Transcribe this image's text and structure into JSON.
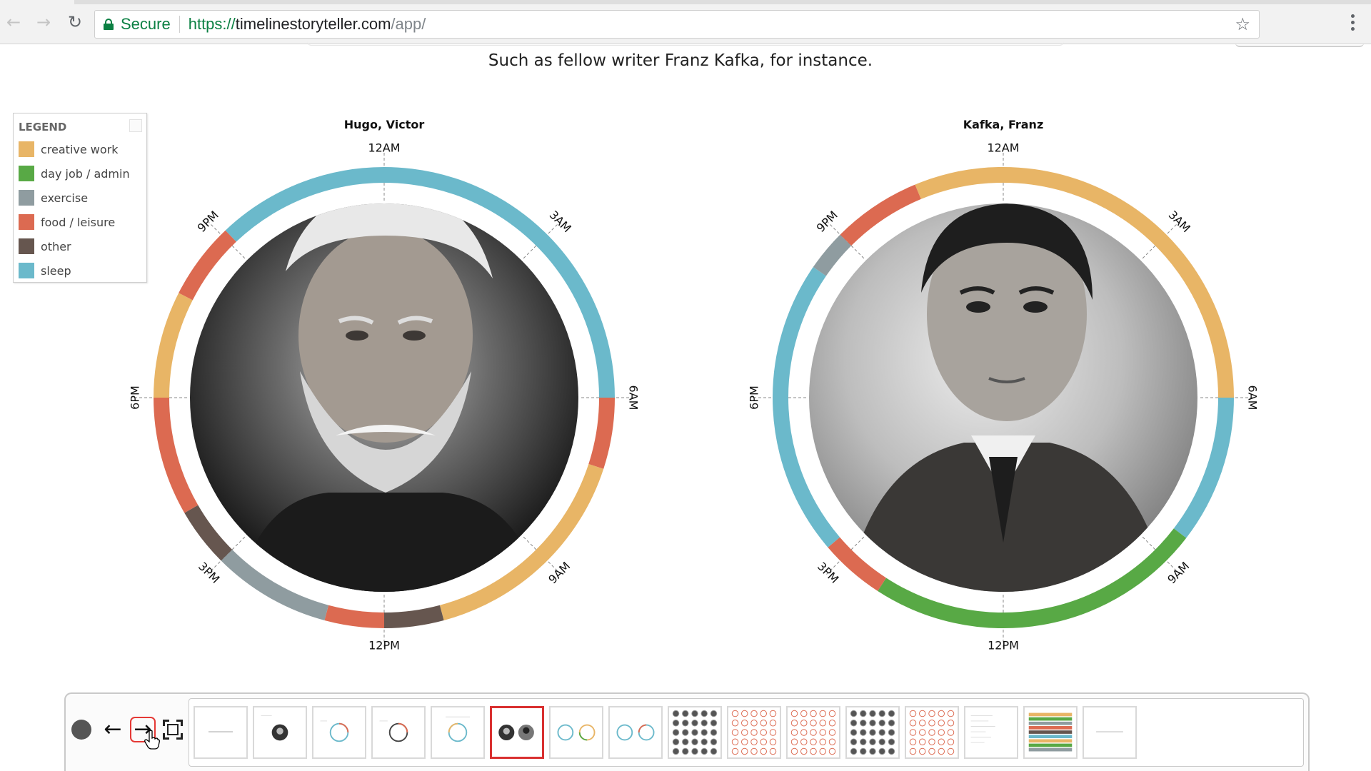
{
  "browser": {
    "security_label": "Secure",
    "url_scheme": "https://",
    "url_host": "timelinestoryteller.com",
    "url_path": "/app/",
    "icons": [
      "back-arrow-icon",
      "forward-arrow-icon",
      "reload-icon",
      "lock-icon",
      "star-icon",
      "menu-dots-icon"
    ]
  },
  "page": {
    "caption": "Such as fellow writer Franz Kafka, for instance."
  },
  "legend": {
    "title": "LEGEND",
    "items": [
      {
        "label": "creative work",
        "color": "#e8b566"
      },
      {
        "label": "day job / admin",
        "color": "#58a945"
      },
      {
        "label": "exercise",
        "color": "#8f9ca0"
      },
      {
        "label": "food / leisure",
        "color": "#dc6a51"
      },
      {
        "label": "other",
        "color": "#66564f"
      },
      {
        "label": "sleep",
        "color": "#6bb9cb"
      }
    ]
  },
  "clocks": [
    {
      "title": "Hugo, Victor",
      "hour_labels": {
        "top": "12AM",
        "h3": "3AM",
        "right": "6AM",
        "h9": "9AM",
        "bottom": "12PM",
        "h15": "3PM",
        "left": "6PM",
        "h21": "9PM"
      },
      "segments": [
        {
          "category": "sleep",
          "start_hour": 21.1,
          "end_hour": 6.0
        },
        {
          "category": "food / leisure",
          "start_hour": 6.0,
          "end_hour": 7.2
        },
        {
          "category": "creative work",
          "start_hour": 7.2,
          "end_hour": 11.0
        },
        {
          "category": "other",
          "start_hour": 11.0,
          "end_hour": 12.0
        },
        {
          "category": "food / leisure",
          "start_hour": 12.0,
          "end_hour": 13.0
        },
        {
          "category": "exercise",
          "start_hour": 13.0,
          "end_hour": 15.0
        },
        {
          "category": "other",
          "start_hour": 15.0,
          "end_hour": 16.0
        },
        {
          "category": "food / leisure",
          "start_hour": 16.0,
          "end_hour": 18.0
        },
        {
          "category": "creative work",
          "start_hour": 18.0,
          "end_hour": 19.8
        },
        {
          "category": "food / leisure",
          "start_hour": 19.8,
          "end_hour": 21.1
        }
      ]
    },
    {
      "title": "Kafka, Franz",
      "hour_labels": {
        "top": "12AM",
        "h3": "3AM",
        "right": "6AM",
        "h9": "9AM",
        "bottom": "12PM",
        "h15": "3PM",
        "left": "6PM",
        "h21": "9PM"
      },
      "segments": [
        {
          "category": "creative work",
          "start_hour": 22.5,
          "end_hour": 6.0
        },
        {
          "category": "sleep",
          "start_hour": 6.0,
          "end_hour": 8.5
        },
        {
          "category": "day job / admin",
          "start_hour": 8.5,
          "end_hour": 14.2
        },
        {
          "category": "food / leisure",
          "start_hour": 14.2,
          "end_hour": 15.3
        },
        {
          "category": "sleep",
          "start_hour": 15.3,
          "end_hour": 20.3
        },
        {
          "category": "exercise",
          "start_hour": 20.3,
          "end_hour": 21.0
        },
        {
          "category": "food / leisure",
          "start_hour": 21.0,
          "end_hour": 22.5
        }
      ]
    }
  ],
  "toolbar": {
    "icons": [
      "record-icon",
      "previous-arrow-icon",
      "next-arrow-icon",
      "fullscreen-icon"
    ],
    "active_frame": 6,
    "frame_count": 16
  }
}
